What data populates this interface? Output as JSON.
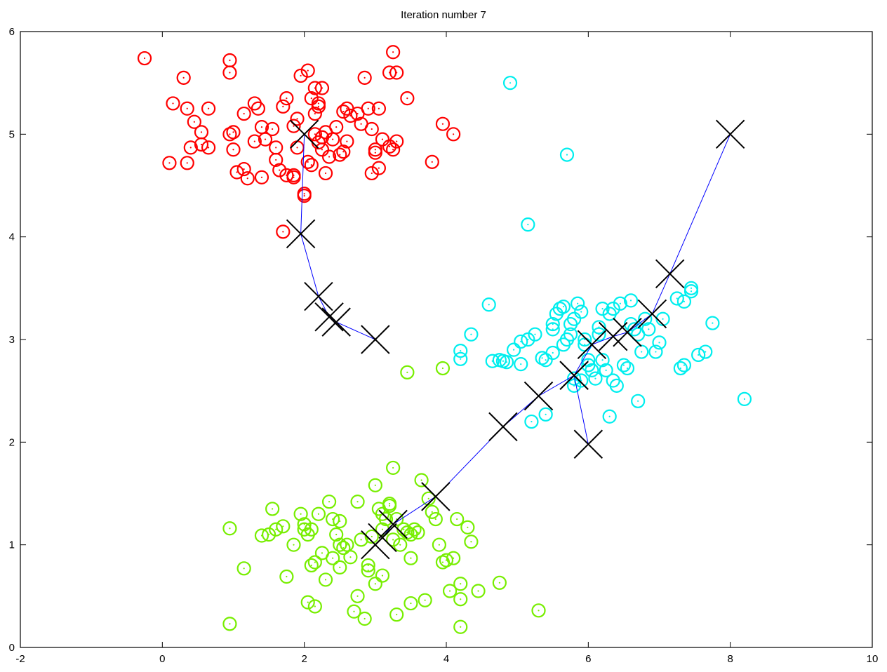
{
  "chart_data": {
    "type": "scatter",
    "title": "Iteration number 7",
    "xlabel": "",
    "ylabel": "",
    "xlim": [
      -2,
      10
    ],
    "ylim": [
      0,
      6
    ],
    "grid": false,
    "x_ticks": [
      -2,
      0,
      2,
      4,
      6,
      8,
      10
    ],
    "y_ticks": [
      0,
      1,
      2,
      3,
      4,
      5,
      6
    ],
    "colors": {
      "cluster_1": "#ff0000",
      "cluster_2": "#00eeee",
      "cluster_3": "#77ee00",
      "centroid_marker": "#000000",
      "centroid_path": "#0000ff"
    },
    "series": [
      {
        "name": "cluster_1",
        "color": "#ff0000",
        "points": [
          [
            -0.25,
            5.74
          ],
          [
            0.15,
            5.3
          ],
          [
            0.3,
            5.55
          ],
          [
            0.35,
            5.25
          ],
          [
            0.45,
            5.12
          ],
          [
            0.55,
            5.02
          ],
          [
            0.4,
            4.87
          ],
          [
            0.55,
            4.9
          ],
          [
            0.1,
            4.72
          ],
          [
            0.35,
            4.72
          ],
          [
            0.65,
            4.87
          ],
          [
            0.65,
            5.25
          ],
          [
            0.95,
            5.72
          ],
          [
            0.95,
            5.6
          ],
          [
            1.0,
            5.02
          ],
          [
            0.95,
            5.0
          ],
          [
            1.0,
            4.85
          ],
          [
            1.05,
            4.63
          ],
          [
            1.15,
            4.66
          ],
          [
            1.2,
            4.57
          ],
          [
            1.15,
            5.2
          ],
          [
            1.3,
            4.93
          ],
          [
            1.3,
            5.3
          ],
          [
            1.35,
            5.25
          ],
          [
            1.4,
            5.07
          ],
          [
            1.45,
            4.95
          ],
          [
            1.4,
            4.58
          ],
          [
            1.55,
            5.05
          ],
          [
            1.6,
            4.87
          ],
          [
            1.6,
            4.75
          ],
          [
            1.65,
            4.65
          ],
          [
            1.7,
            5.27
          ],
          [
            1.75,
            5.35
          ],
          [
            1.75,
            4.6
          ],
          [
            1.85,
            4.58
          ],
          [
            1.85,
            4.6
          ],
          [
            1.9,
            4.87
          ],
          [
            1.85,
            5.08
          ],
          [
            1.9,
            5.15
          ],
          [
            1.95,
            5.57
          ],
          [
            2.05,
            5.62
          ],
          [
            2.05,
            4.73
          ],
          [
            2.1,
            4.7
          ],
          [
            2.15,
            5.2
          ],
          [
            2.2,
            5.27
          ],
          [
            2.2,
            5.3
          ],
          [
            2.15,
            5.45
          ],
          [
            2.25,
            5.45
          ],
          [
            2.1,
            5.35
          ],
          [
            2.15,
            5.0
          ],
          [
            2.2,
            4.92
          ],
          [
            2.25,
            4.97
          ],
          [
            2.3,
            5.02
          ],
          [
            2.25,
            4.85
          ],
          [
            2.35,
            4.78
          ],
          [
            2.3,
            4.62
          ],
          [
            2.4,
            4.95
          ],
          [
            2.45,
            5.07
          ],
          [
            2.5,
            4.8
          ],
          [
            2.55,
            4.83
          ],
          [
            2.6,
            4.93
          ],
          [
            2.55,
            5.22
          ],
          [
            2.6,
            5.25
          ],
          [
            2.65,
            5.18
          ],
          [
            2.75,
            5.2
          ],
          [
            2.8,
            5.1
          ],
          [
            2.85,
            5.55
          ],
          [
            2.9,
            5.25
          ],
          [
            2.95,
            5.05
          ],
          [
            3.0,
            4.85
          ],
          [
            2.95,
            4.62
          ],
          [
            3.05,
            4.67
          ],
          [
            3.0,
            4.82
          ],
          [
            3.05,
            5.25
          ],
          [
            3.1,
            4.95
          ],
          [
            3.2,
            4.88
          ],
          [
            3.25,
            4.85
          ],
          [
            3.2,
            5.6
          ],
          [
            3.3,
            5.6
          ],
          [
            3.25,
            5.8
          ],
          [
            3.3,
            4.93
          ],
          [
            3.45,
            5.35
          ],
          [
            3.8,
            4.73
          ],
          [
            3.95,
            5.1
          ],
          [
            4.1,
            5.0
          ],
          [
            2.0,
            4.42
          ],
          [
            2.0,
            4.4
          ],
          [
            1.7,
            4.05
          ]
        ]
      },
      {
        "name": "cluster_2",
        "color": "#00eeee",
        "points": [
          [
            4.9,
            5.5
          ],
          [
            5.7,
            4.8
          ],
          [
            5.15,
            4.12
          ],
          [
            4.6,
            3.34
          ],
          [
            4.35,
            3.05
          ],
          [
            4.2,
            2.89
          ],
          [
            4.2,
            2.81
          ],
          [
            4.65,
            2.79
          ],
          [
            4.75,
            2.8
          ],
          [
            4.8,
            2.79
          ],
          [
            4.85,
            2.78
          ],
          [
            4.95,
            2.9
          ],
          [
            5.05,
            2.98
          ],
          [
            5.05,
            2.76
          ],
          [
            5.15,
            3.0
          ],
          [
            5.2,
            2.2
          ],
          [
            5.25,
            3.05
          ],
          [
            5.35,
            2.82
          ],
          [
            5.4,
            2.8
          ],
          [
            5.4,
            2.27
          ],
          [
            5.5,
            3.1
          ],
          [
            5.5,
            3.15
          ],
          [
            5.5,
            2.87
          ],
          [
            5.55,
            3.25
          ],
          [
            5.6,
            3.3
          ],
          [
            5.65,
            3.32
          ],
          [
            5.65,
            2.95
          ],
          [
            5.7,
            3.0
          ],
          [
            5.75,
            3.05
          ],
          [
            5.75,
            3.15
          ],
          [
            5.8,
            3.2
          ],
          [
            5.8,
            2.62
          ],
          [
            5.85,
            3.35
          ],
          [
            5.9,
            3.27
          ],
          [
            5.95,
            3.0
          ],
          [
            5.95,
            2.95
          ],
          [
            6.0,
            2.8
          ],
          [
            6.0,
            2.75
          ],
          [
            6.05,
            2.7
          ],
          [
            6.1,
            2.62
          ],
          [
            6.15,
            3.12
          ],
          [
            6.15,
            3.05
          ],
          [
            6.2,
            3.3
          ],
          [
            6.2,
            2.8
          ],
          [
            6.25,
            2.7
          ],
          [
            6.3,
            3.25
          ],
          [
            6.35,
            3.3
          ],
          [
            6.35,
            2.6
          ],
          [
            6.4,
            2.55
          ],
          [
            6.45,
            3.35
          ],
          [
            6.5,
            2.75
          ],
          [
            6.55,
            2.72
          ],
          [
            6.6,
            3.38
          ],
          [
            6.6,
            3.15
          ],
          [
            6.65,
            3.1
          ],
          [
            6.7,
            3.05
          ],
          [
            6.7,
            2.4
          ],
          [
            6.75,
            2.88
          ],
          [
            6.8,
            3.2
          ],
          [
            6.85,
            3.1
          ],
          [
            6.95,
            2.88
          ],
          [
            7.0,
            2.97
          ],
          [
            7.05,
            3.2
          ],
          [
            7.25,
            3.4
          ],
          [
            7.3,
            2.72
          ],
          [
            7.35,
            2.75
          ],
          [
            7.35,
            3.37
          ],
          [
            7.45,
            3.47
          ],
          [
            7.45,
            3.5
          ],
          [
            7.55,
            2.85
          ],
          [
            7.65,
            2.88
          ],
          [
            7.75,
            3.16
          ],
          [
            8.2,
            2.42
          ],
          [
            6.3,
            2.25
          ],
          [
            5.9,
            2.6
          ],
          [
            5.8,
            2.55
          ]
        ]
      },
      {
        "name": "cluster_3",
        "color": "#77ee00",
        "points": [
          [
            3.45,
            2.68
          ],
          [
            3.95,
            2.72
          ],
          [
            0.95,
            1.16
          ],
          [
            0.95,
            0.23
          ],
          [
            1.15,
            0.77
          ],
          [
            1.4,
            1.09
          ],
          [
            1.5,
            1.1
          ],
          [
            1.55,
            1.35
          ],
          [
            1.6,
            1.15
          ],
          [
            1.7,
            1.18
          ],
          [
            1.75,
            0.69
          ],
          [
            1.85,
            1.0
          ],
          [
            1.95,
            1.3
          ],
          [
            2.0,
            1.2
          ],
          [
            2.0,
            1.15
          ],
          [
            2.05,
            1.1
          ],
          [
            2.05,
            0.44
          ],
          [
            2.1,
            1.15
          ],
          [
            2.1,
            0.8
          ],
          [
            2.15,
            0.83
          ],
          [
            2.15,
            0.4
          ],
          [
            2.2,
            1.3
          ],
          [
            2.25,
            0.92
          ],
          [
            2.3,
            0.66
          ],
          [
            2.35,
            1.42
          ],
          [
            2.4,
            1.25
          ],
          [
            2.4,
            0.87
          ],
          [
            2.45,
            1.1
          ],
          [
            2.5,
            1.23
          ],
          [
            2.5,
            0.78
          ],
          [
            2.55,
            0.97
          ],
          [
            2.6,
            1.0
          ],
          [
            2.65,
            0.88
          ],
          [
            2.7,
            0.35
          ],
          [
            2.75,
            0.5
          ],
          [
            2.75,
            1.42
          ],
          [
            2.8,
            1.05
          ],
          [
            2.85,
            0.28
          ],
          [
            2.9,
            0.8
          ],
          [
            2.9,
            0.75
          ],
          [
            3.0,
            1.58
          ],
          [
            3.0,
            0.62
          ],
          [
            3.05,
            1.35
          ],
          [
            3.1,
            1.3
          ],
          [
            3.1,
            0.7
          ],
          [
            3.15,
            1.25
          ],
          [
            3.2,
            1.4
          ],
          [
            3.2,
            1.38
          ],
          [
            3.25,
            1.05
          ],
          [
            3.25,
            1.75
          ],
          [
            3.3,
            1.25
          ],
          [
            3.35,
            1.0
          ],
          [
            3.45,
            1.12
          ],
          [
            3.5,
            1.1
          ],
          [
            3.5,
            0.87
          ],
          [
            3.55,
            1.15
          ],
          [
            3.6,
            1.12
          ],
          [
            3.65,
            1.63
          ],
          [
            3.7,
            0.46
          ],
          [
            3.75,
            1.45
          ],
          [
            3.8,
            1.32
          ],
          [
            3.85,
            1.25
          ],
          [
            3.9,
            1.0
          ],
          [
            3.95,
            0.83
          ],
          [
            4.0,
            0.85
          ],
          [
            4.05,
            0.55
          ],
          [
            4.1,
            0.87
          ],
          [
            4.15,
            1.25
          ],
          [
            4.2,
            0.47
          ],
          [
            4.2,
            0.62
          ],
          [
            4.2,
            0.2
          ],
          [
            4.3,
            1.17
          ],
          [
            4.35,
            1.03
          ],
          [
            4.45,
            0.55
          ],
          [
            4.75,
            0.63
          ],
          [
            5.3,
            0.36
          ],
          [
            3.3,
            0.32
          ],
          [
            3.5,
            0.43
          ],
          [
            2.5,
            1.0
          ],
          [
            2.95,
            1.08
          ],
          [
            3.1,
            1.15
          ],
          [
            3.4,
            1.15
          ]
        ]
      }
    ],
    "centroid_paths": [
      {
        "name": "centroid_1",
        "points": [
          [
            2.0,
            5.0
          ],
          [
            1.95,
            4.03
          ],
          [
            2.2,
            3.42
          ],
          [
            2.35,
            3.22
          ],
          [
            2.45,
            3.17
          ],
          [
            3.0,
            3.0
          ]
        ]
      },
      {
        "name": "centroid_2",
        "points": [
          [
            8.0,
            5.0
          ],
          [
            7.15,
            3.64
          ],
          [
            6.9,
            3.25
          ],
          [
            6.55,
            3.07
          ],
          [
            6.35,
            3.03
          ],
          [
            6.05,
            2.95
          ],
          [
            5.8,
            2.65
          ],
          [
            6.0,
            1.98
          ]
        ]
      },
      {
        "name": "centroid_3",
        "points": [
          [
            3.0,
            1.0
          ],
          [
            3.1,
            1.07
          ],
          [
            3.25,
            1.2
          ],
          [
            3.85,
            1.47
          ],
          [
            4.8,
            2.15
          ],
          [
            5.3,
            2.45
          ],
          [
            5.8,
            2.65
          ]
        ]
      }
    ]
  }
}
